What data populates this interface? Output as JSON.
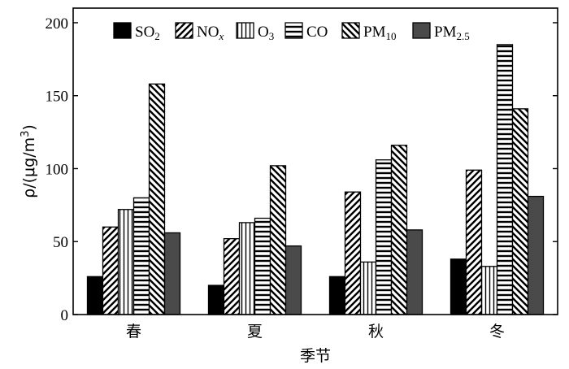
{
  "chart_data": {
    "type": "bar",
    "title": "",
    "xlabel": "季节",
    "ylabel_main": "ρ/(μg/m",
    "ylabel_sup": "3",
    "ylabel_close": ")",
    "ylim": [
      0,
      210
    ],
    "yticks": [
      0,
      50,
      100,
      150,
      200
    ],
    "categories": [
      "春",
      "夏",
      "秋",
      "冬"
    ],
    "legend_position": "top",
    "series": [
      {
        "name": "SO2",
        "legend_base": "SO",
        "legend_sub": "2",
        "legend_italic_sub": false,
        "pattern": "solid-black",
        "values": [
          26,
          20,
          26,
          38
        ]
      },
      {
        "name": "NOx",
        "legend_base": "NO",
        "legend_sub": "x",
        "legend_italic_sub": true,
        "pattern": "diag-up",
        "values": [
          60,
          52,
          84,
          99
        ]
      },
      {
        "name": "O3",
        "legend_base": "O",
        "legend_sub": "3",
        "legend_italic_sub": false,
        "pattern": "vertical",
        "values": [
          72,
          63,
          36,
          33
        ]
      },
      {
        "name": "CO",
        "legend_base": "CO",
        "legend_sub": "",
        "legend_italic_sub": false,
        "pattern": "horizontal",
        "values": [
          80,
          66,
          106,
          185
        ]
      },
      {
        "name": "PM10",
        "legend_base": "PM",
        "legend_sub": "10",
        "legend_italic_sub": false,
        "pattern": "diag-down",
        "values": [
          158,
          102,
          116,
          141
        ]
      },
      {
        "name": "PM2.5",
        "legend_base": "PM",
        "legend_sub": "2.5",
        "legend_italic_sub": false,
        "pattern": "solid-gray",
        "values": [
          56,
          47,
          58,
          81
        ]
      }
    ],
    "colors": {
      "solid_black": "#000000",
      "solid_gray": "#4a4a4a",
      "hatch": "#000000"
    }
  }
}
